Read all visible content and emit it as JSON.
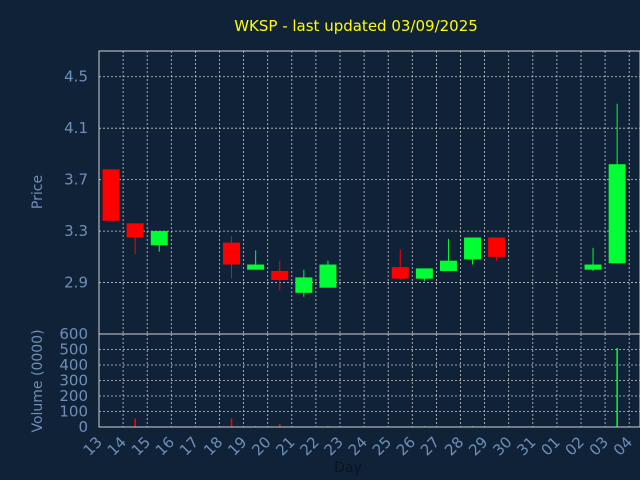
{
  "chart_data": [
    {
      "type": "candlestick",
      "title": "WKSP - last updated 03/09/2025",
      "ylabel": "Price",
      "xlabel": "Day",
      "ylim": [
        2.5,
        4.7
      ],
      "yticks": [
        2.9,
        3.3,
        3.7,
        4.1,
        4.5
      ],
      "grid": true,
      "up_color": "#00ff33",
      "down_color": "#ff0000",
      "xticks": [
        "13",
        "14",
        "15",
        "16",
        "17",
        "18",
        "19",
        "20",
        "21",
        "22",
        "23",
        "24",
        "25",
        "26",
        "27",
        "28",
        "29",
        "30",
        "31",
        "01",
        "02",
        "03",
        "04"
      ],
      "candles": [
        {
          "day": "13",
          "open": 3.78,
          "close": 3.38,
          "high": 3.78,
          "low": 3.38
        },
        {
          "day": "14",
          "open": 3.36,
          "close": 3.25,
          "high": 3.36,
          "low": 3.12
        },
        {
          "day": "15",
          "open": 3.19,
          "close": 3.3,
          "high": 3.3,
          "low": 3.14
        },
        {
          "day": "18",
          "open": 3.21,
          "close": 3.04,
          "high": 3.26,
          "low": 2.93
        },
        {
          "day": "19",
          "open": 3.0,
          "close": 3.04,
          "high": 3.15,
          "low": 3.0
        },
        {
          "day": "20",
          "open": 2.99,
          "close": 2.92,
          "high": 3.07,
          "low": 2.84
        },
        {
          "day": "21",
          "open": 2.82,
          "close": 2.94,
          "high": 3.0,
          "low": 2.79
        },
        {
          "day": "22",
          "open": 2.86,
          "close": 3.04,
          "high": 3.07,
          "low": 2.86
        },
        {
          "day": "25",
          "open": 3.02,
          "close": 2.93,
          "high": 3.16,
          "low": 2.92
        },
        {
          "day": "26",
          "open": 2.93,
          "close": 3.01,
          "high": 3.01,
          "low": 2.91
        },
        {
          "day": "27",
          "open": 2.99,
          "close": 3.07,
          "high": 3.24,
          "low": 2.99
        },
        {
          "day": "28",
          "open": 3.08,
          "close": 3.25,
          "high": 3.25,
          "low": 3.04
        },
        {
          "day": "29",
          "open": 3.25,
          "close": 3.1,
          "high": 3.25,
          "low": 3.07
        },
        {
          "day": "02",
          "open": 3.0,
          "close": 3.04,
          "high": 3.17,
          "low": 2.99
        },
        {
          "day": "03",
          "open": 3.05,
          "close": 3.82,
          "high": 4.29,
          "low": 3.05
        }
      ]
    },
    {
      "type": "bar",
      "ylabel": "Volume (0000)",
      "ylim": [
        0,
        600
      ],
      "yticks": [
        0,
        100,
        200,
        300,
        400,
        500,
        600
      ],
      "grid": true,
      "categories": [
        "13",
        "14",
        "15",
        "16",
        "17",
        "18",
        "19",
        "20",
        "21",
        "22",
        "23",
        "24",
        "25",
        "26",
        "27",
        "28",
        "29",
        "30",
        "31",
        "01",
        "02",
        "03",
        "04"
      ],
      "values": [
        0,
        55,
        3,
        0,
        0,
        55,
        5,
        20,
        3,
        5,
        0,
        0,
        3,
        5,
        3,
        5,
        3,
        0,
        0,
        0,
        3,
        510,
        0
      ]
    }
  ]
}
